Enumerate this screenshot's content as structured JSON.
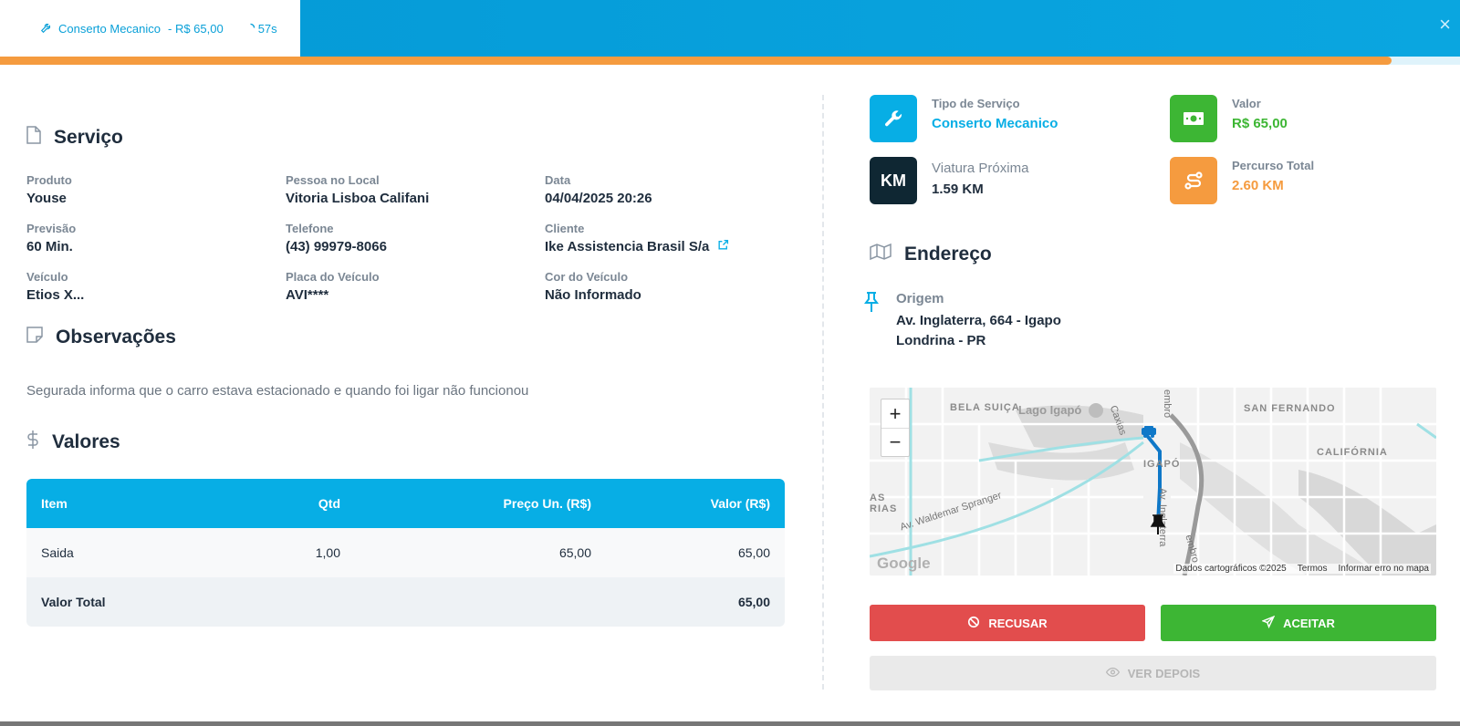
{
  "header": {
    "tab_service": "Conserto Mecanico",
    "tab_price": "- R$ 65,00",
    "tab_timer": "57s",
    "close_label": "×",
    "progress_fraction": 0.953
  },
  "service": {
    "title": "Serviço",
    "fields": [
      {
        "label": "Produto",
        "value": "Youse"
      },
      {
        "label": "Pessoa no Local",
        "value": "Vitoria Lisboa Califani"
      },
      {
        "label": "Data",
        "value": "04/04/2025 20:26"
      },
      {
        "label": "Previsão",
        "value": "60 Min."
      },
      {
        "label": "Telefone",
        "value": "(43) 99979-8066"
      },
      {
        "label": "Cliente",
        "value": "Ike Assistencia Brasil S/a"
      },
      {
        "label": "Veículo",
        "value": "Etios X..."
      },
      {
        "label": "Placa do Veículo",
        "value": "AVI****"
      },
      {
        "label": "Cor do Veículo",
        "value": "Não Informado"
      }
    ]
  },
  "observations": {
    "title": "Observações",
    "text": "Segurada informa que o carro estava estacionado e quando foi ligar não funcionou"
  },
  "values": {
    "title": "Valores",
    "columns": [
      "Item",
      "Qtd",
      "Preço Un. (R$)",
      "Valor (R$)"
    ],
    "rows": [
      {
        "item": "Saida",
        "qtd": "1,00",
        "unit": "65,00",
        "total": "65,00"
      }
    ],
    "total_label": "Valor Total",
    "total_value": "65,00"
  },
  "summary": {
    "service_type_label": "Tipo de Serviço",
    "service_type_value": "Conserto Mecanico",
    "value_label": "Valor",
    "value_value": "R$ 65,00",
    "vehicle_label": "Viatura Próxima",
    "vehicle_value": "1.59 KM",
    "km_tile_text": "KM",
    "route_label": "Percurso Total",
    "route_value": "2.60 KM"
  },
  "address": {
    "title": "Endereço",
    "origin_label": "Origem",
    "line1": "Av. Inglaterra, 664 - Igapo",
    "line2": "Londrina - PR"
  },
  "map": {
    "labels": [
      "BELA SUIÇA",
      "Lago Igapó",
      "SAN FERNANDO",
      "CALIFÓRNIA",
      "IGAPÓ",
      "AS",
      "RIAS",
      "Av. Waldemar Spranger",
      "Caxias",
      "embro",
      "Av. Inglaterra",
      "embro"
    ],
    "zoom_in": "+",
    "zoom_out": "−",
    "google": "Google",
    "attribution": [
      "Dados cartográficos ©2025",
      "Termos",
      "Informar erro no mapa"
    ]
  },
  "actions": {
    "reject": "RECUSAR",
    "accept": "ACEITAR",
    "later": "VER DEPOIS"
  },
  "colors": {
    "primary": "#07aee5",
    "green": "#3db634",
    "orange": "#f59b3f",
    "dark": "#0f2733",
    "red": "#e24d4d"
  }
}
